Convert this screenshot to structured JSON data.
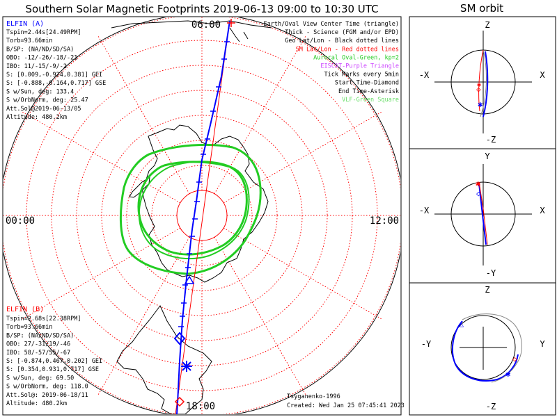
{
  "title": "Southern Solar Magnetic Footprints 2019-06-13 09:00 to 10:30 UTC",
  "sm_title": "SM orbit",
  "polar_labels": {
    "top": "06:00",
    "left": "00:00",
    "right": "12:00",
    "bottom": "18:00"
  },
  "elfin_a": {
    "name": "ELFIN (A)",
    "color": "#0000ff",
    "lines": [
      "Tspin=2.44s[24.49RPM]",
      "Torb=93.66min",
      "B/SP: (NA/ND/SD/SA)",
      "OBO: -12/-26/-18/-21",
      "IBO: 11/-15/-9/-2",
      "S: [0.009,-0.924,0.381] GEI",
      "S: [-0.888,-0.164,0.717] GSE",
      "S w/Sun, deg: 133.4",
      "S w/OrbNorm, deg: 25.47",
      "Att.Sol@2019-06-13/05",
      "Altitude: 480.2km"
    ]
  },
  "elfin_b": {
    "name": "ELFIN (B)",
    "color": "#ff0000",
    "lines": [
      "Tspin=2.68s[22.38RPM]",
      "Torb=93.66min",
      "B/SP: (NA/ND/SD/SA)",
      "OBO: 27/-31/19/-46",
      "IBO: 58/-57/55/-67",
      "S: [-0.874,0.467,0.202] GEI",
      "S: [0.354,0.931,0.717] GSE",
      "S w/Sun, deg: 69.50",
      "S w/OrbNorm, deg: 118.0",
      "Att.Sol@: 2019-06-18/11",
      "Altitude: 480.2km"
    ]
  },
  "legend": [
    {
      "text": "Earth/Oval View Center Time (triangle)",
      "color": "#000000"
    },
    {
      "text": "Thick - Science (FGM and/or EPD)",
      "color": "#000000"
    },
    {
      "text": "Geo Lat/Lon - Black dotted lines",
      "color": "#000000"
    },
    {
      "text": "SM Lat/Lon - Red dotted lines",
      "color": "#ff0000"
    },
    {
      "text": "Auroral Oval-Green, kp=2",
      "color": "#22cc22"
    },
    {
      "text": "EISCAT-Purple Triangle",
      "color": "#cc44ff"
    },
    {
      "text": "Tick Marks every 5min",
      "color": "#000000"
    },
    {
      "text": "Start Time-Diamond",
      "color": "#000000"
    },
    {
      "text": "End Time-Asterisk",
      "color": "#000000"
    },
    {
      "text": "VLF-Green Square",
      "color": "#66dd66"
    }
  ],
  "credits": {
    "model": "Tsyganenko-1996",
    "created": "Created: Wed Jan 25 07:45:41 2023"
  },
  "sm_panels": [
    {
      "up": "Z",
      "down": "-Z",
      "left": "-X",
      "right": "X"
    },
    {
      "up": "Y",
      "down": "-Y",
      "left": "-X",
      "right": "X"
    },
    {
      "up": "Z",
      "down": "-Z",
      "left": "-Y",
      "right": "Y"
    }
  ],
  "colors": {
    "elfin_a": "#0000ff",
    "elfin_b": "#ff0000",
    "sm_grid": "#ff0000",
    "geo_grid": "#000000",
    "auroral_oval": "#22cc22",
    "coast": "#000000"
  },
  "chart_data": [
    {
      "type": "scatter",
      "name": "polar footprint map",
      "title": "Southern Solar Magnetic Footprints 2019-06-13 09:00 to 10:30 UTC",
      "mlt_labels": [
        "06:00",
        "12:00",
        "18:00",
        "00:00"
      ],
      "sm_lat_rings_deg_from_pole": [
        10,
        20,
        30,
        40,
        50,
        60,
        70,
        80
      ],
      "sm_lon_spokes_deg": [
        0,
        30,
        60,
        90,
        120,
        150,
        180,
        210,
        240,
        270,
        300,
        330
      ],
      "series": [
        {
          "name": "ELFIN (A)",
          "color": "#0000ff"
        },
        {
          "name": "ELFIN (B)",
          "color": "#ff0000"
        }
      ]
    },
    {
      "type": "line",
      "name": "SM orbit X-Z",
      "xlabel": "X",
      "ylabel": "Z"
    },
    {
      "type": "line",
      "name": "SM orbit X-Y",
      "xlabel": "X",
      "ylabel": "Y"
    },
    {
      "type": "line",
      "name": "SM orbit Y-Z",
      "xlabel": "Y",
      "ylabel": "Z"
    }
  ]
}
